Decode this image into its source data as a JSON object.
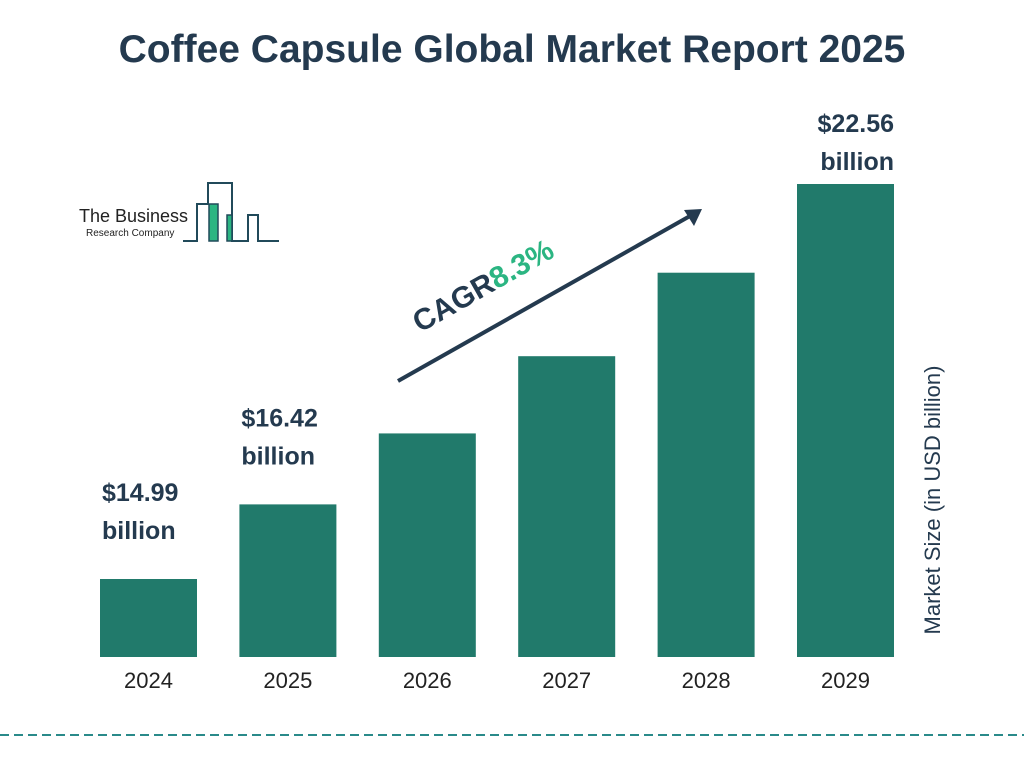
{
  "chart_data": {
    "type": "bar",
    "title": "Coffee Capsule Global Market Report 2025",
    "ylabel": "Market Size (in USD billion)",
    "categories": [
      "2024",
      "2025",
      "2026",
      "2027",
      "2028",
      "2029"
    ],
    "values": [
      14.99,
      16.42,
      17.78,
      19.26,
      20.86,
      22.56
    ],
    "data_labels": [
      {
        "index": 0,
        "line1": "$14.99",
        "line2": "billion"
      },
      {
        "index": 1,
        "line1": "$16.42",
        "line2": "billion"
      },
      {
        "index": 5,
        "line1": "$22.56",
        "line2": "billion"
      }
    ],
    "annotation": {
      "text": "CAGR",
      "value": "8.3%"
    },
    "colors": {
      "bar": "#217a6b",
      "text": "#243a4f",
      "accent": "#2bb582",
      "divider": "#2a8a8a"
    },
    "grid": false
  },
  "logo": {
    "line1": "The Business",
    "line2": "Research Company"
  }
}
